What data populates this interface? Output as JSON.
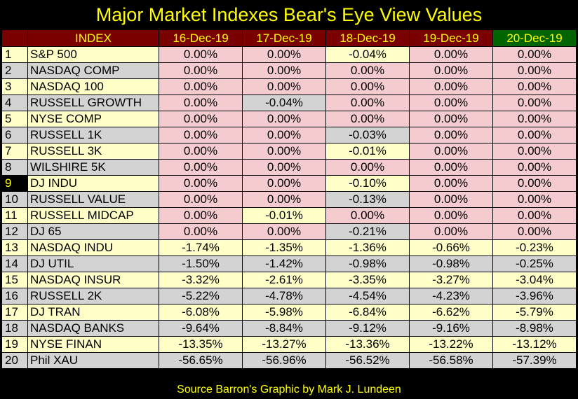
{
  "title": "Major Market Indexes Bear's Eye View Values",
  "footer": "Source Barron's   Graphic by Mark J. Lundeen",
  "colors": {
    "header_bg": "#7a0000",
    "latest_header_bg": "#006400",
    "header_text": "#ffff00",
    "row_yellow": "#ffffc8",
    "row_gray": "#d3d3d3",
    "zero_cell_pink": "#f4ccd0",
    "background": "#000000"
  },
  "chart_data": {
    "type": "table",
    "columns": [
      "INDEX",
      "16-Dec-19",
      "17-Dec-19",
      "18-Dec-19",
      "19-Dec-19",
      "20-Dec-19"
    ],
    "rows": [
      {
        "rank": "1",
        "name": "S&P 500",
        "values": [
          "0.00%",
          "0.00%",
          "-0.04%",
          "0.00%",
          "0.00%"
        ]
      },
      {
        "rank": "2",
        "name": "NASDAQ COMP",
        "values": [
          "0.00%",
          "0.00%",
          "0.00%",
          "0.00%",
          "0.00%"
        ]
      },
      {
        "rank": "3",
        "name": "NASDAQ 100",
        "values": [
          "0.00%",
          "0.00%",
          "0.00%",
          "0.00%",
          "0.00%"
        ]
      },
      {
        "rank": "4",
        "name": "RUSSELL GROWTH",
        "values": [
          "0.00%",
          "-0.04%",
          "0.00%",
          "0.00%",
          "0.00%"
        ]
      },
      {
        "rank": "5",
        "name": "NYSE COMP",
        "values": [
          "0.00%",
          "0.00%",
          "0.00%",
          "0.00%",
          "0.00%"
        ]
      },
      {
        "rank": "6",
        "name": "RUSSELL 1K",
        "values": [
          "0.00%",
          "0.00%",
          "-0.03%",
          "0.00%",
          "0.00%"
        ]
      },
      {
        "rank": "7",
        "name": "RUSSELL 3K",
        "values": [
          "0.00%",
          "0.00%",
          "-0.01%",
          "0.00%",
          "0.00%"
        ]
      },
      {
        "rank": "8",
        "name": "WILSHIRE 5K",
        "values": [
          "0.00%",
          "0.00%",
          "0.00%",
          "0.00%",
          "0.00%"
        ]
      },
      {
        "rank": "9",
        "name": "DJ  INDU",
        "values": [
          "0.00%",
          "0.00%",
          "-0.10%",
          "0.00%",
          "0.00%"
        ]
      },
      {
        "rank": "10",
        "name": "RUSSELL VALUE",
        "values": [
          "0.00%",
          "0.00%",
          "-0.13%",
          "0.00%",
          "0.00%"
        ]
      },
      {
        "rank": "11",
        "name": "RUSSELL MIDCAP",
        "values": [
          "0.00%",
          "-0.01%",
          "0.00%",
          "0.00%",
          "0.00%"
        ]
      },
      {
        "rank": "12",
        "name": "DJ  65",
        "values": [
          "0.00%",
          "0.00%",
          "-0.21%",
          "0.00%",
          "0.00%"
        ]
      },
      {
        "rank": "13",
        "name": "NASDAQ INDU",
        "values": [
          "-1.74%",
          "-1.35%",
          "-1.36%",
          "-0.66%",
          "-0.23%"
        ]
      },
      {
        "rank": "14",
        "name": "DJ  UTIL",
        "values": [
          "-1.50%",
          "-1.42%",
          "-0.98%",
          "-0.98%",
          "-0.25%"
        ]
      },
      {
        "rank": "15",
        "name": "NASDAQ INSUR",
        "values": [
          "-3.32%",
          "-2.61%",
          "-3.35%",
          "-3.27%",
          "-3.04%"
        ]
      },
      {
        "rank": "16",
        "name": "RUSSELL 2K",
        "values": [
          "-5.22%",
          "-4.78%",
          "-4.54%",
          "-4.23%",
          "-3.96%"
        ]
      },
      {
        "rank": "17",
        "name": "DJ  TRAN",
        "values": [
          "-6.08%",
          "-5.98%",
          "-6.84%",
          "-6.62%",
          "-5.79%"
        ]
      },
      {
        "rank": "18",
        "name": "NASDAQ BANKS",
        "values": [
          "-9.64%",
          "-8.84%",
          "-9.12%",
          "-9.16%",
          "-8.98%"
        ]
      },
      {
        "rank": "19",
        "name": "NYSE FINAN",
        "values": [
          "-13.35%",
          "-13.27%",
          "-13.36%",
          "-13.22%",
          "-13.12%"
        ]
      },
      {
        "rank": "20",
        "name": "Phil XAU",
        "values": [
          "-56.65%",
          "-56.96%",
          "-56.52%",
          "-56.58%",
          "-57.39%"
        ]
      }
    ]
  }
}
